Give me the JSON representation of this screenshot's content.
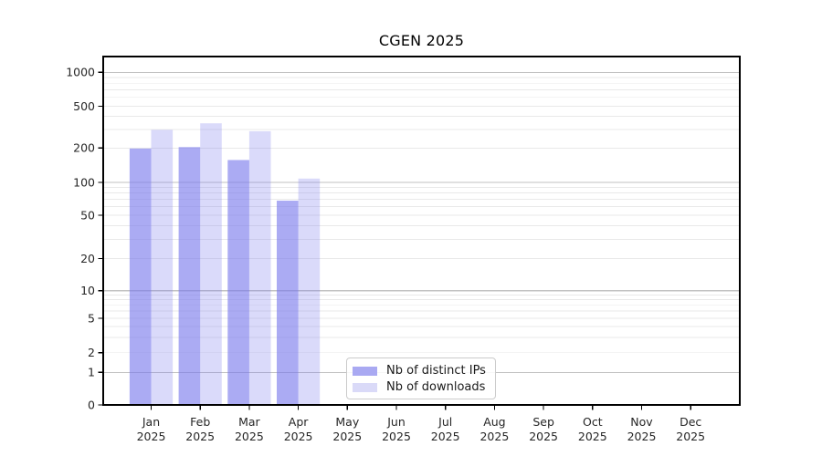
{
  "title": "CGEN 2025",
  "chart_data": {
    "type": "bar",
    "title": "CGEN 2025",
    "x": {
      "months": [
        "Jan",
        "Feb",
        "Mar",
        "Apr",
        "May",
        "Jun",
        "Jul",
        "Aug",
        "Sep",
        "Oct",
        "Nov",
        "Dec"
      ],
      "year": "2025"
    },
    "series": [
      {
        "name": "Nb of distinct IPs",
        "color": "rgba(119,119,236,0.62)",
        "legend_color": "#a9a9f2",
        "values": [
          198,
          204,
          157,
          68,
          null,
          null,
          null,
          null,
          null,
          null,
          null,
          null
        ]
      },
      {
        "name": "Nb of downloads",
        "color": "rgba(119,119,236,0.27)",
        "legend_color": "#dadaf8",
        "values": [
          298,
          344,
          289,
          108,
          null,
          null,
          null,
          null,
          null,
          null,
          null,
          null
        ]
      }
    ],
    "y_axis": {
      "scale": "symlog",
      "tick_values": [
        0,
        1,
        2,
        5,
        10,
        20,
        50,
        100,
        200,
        500,
        1000
      ],
      "tick_labels": [
        "0",
        "1",
        "2",
        "5",
        "10",
        "20",
        "50",
        "100",
        "200",
        "500",
        "1000"
      ],
      "major_grid_values": [
        1,
        10,
        100,
        1000
      ],
      "minor_grid_values": [
        2,
        3,
        4,
        5,
        6,
        7,
        8,
        9,
        20,
        30,
        40,
        50,
        60,
        70,
        80,
        90,
        200,
        300,
        400,
        500,
        600,
        700,
        800,
        900
      ]
    },
    "legend": {
      "entries": [
        "Nb of distinct IPs",
        "Nb of downloads"
      ],
      "position": "bottom-left-of-center inside plot"
    },
    "grid": "both",
    "colors": {
      "major_grid": "#c2c2c2",
      "minor_grid": "#e9e9e9",
      "axis": "#000000",
      "tick_text": "#262626"
    }
  }
}
